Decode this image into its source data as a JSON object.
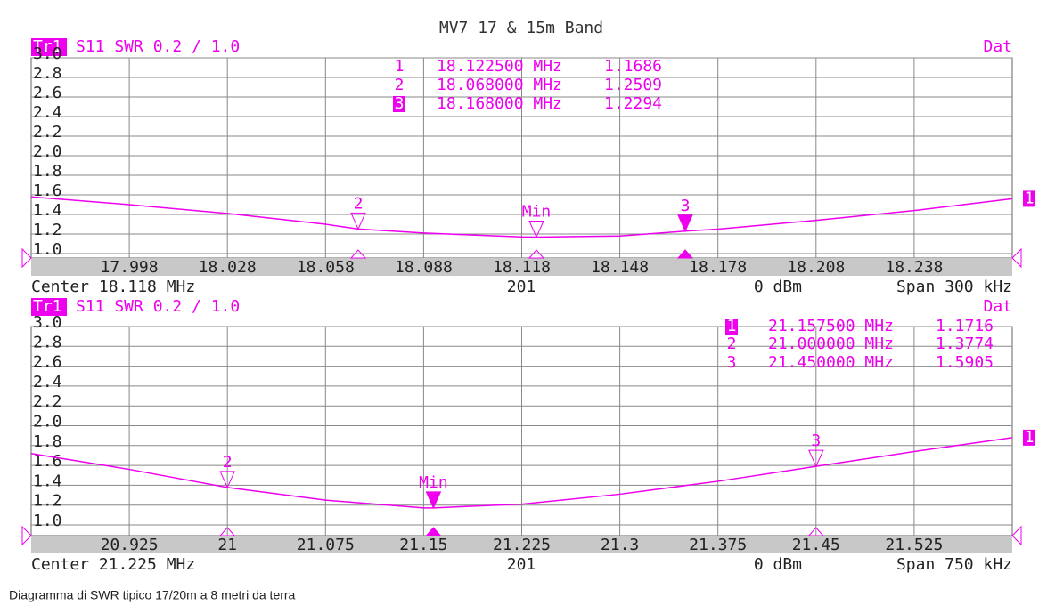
{
  "title": "MV7 17 & 15m Band",
  "caption": "Diagramma di SWR tipico 17/20m a 8 metri da terra",
  "chart_data": [
    {
      "type": "line",
      "trace": "Tr1",
      "format": "S11 SWR 0.2 / 1.0",
      "status": "Dat",
      "trace_number": "1",
      "color": "#ee00ee",
      "grid": true,
      "x": [
        17.968,
        17.998,
        18.028,
        18.058,
        18.068,
        18.088,
        18.118,
        18.1225,
        18.148,
        18.168,
        18.178,
        18.208,
        18.238,
        18.268
      ],
      "values": [
        1.58,
        1.5,
        1.41,
        1.3,
        1.2509,
        1.21,
        1.17,
        1.1686,
        1.18,
        1.2294,
        1.25,
        1.34,
        1.44,
        1.56
      ],
      "xlim": [
        17.968,
        18.268
      ],
      "xticks": [
        17.998,
        18.028,
        18.058,
        18.088,
        18.118,
        18.148,
        18.178,
        18.208,
        18.238
      ],
      "ylim": [
        1.0,
        3.0
      ],
      "yticks": [
        {
          "value": 1.0,
          "label": "1.0"
        },
        1.2,
        1.4,
        1.6,
        1.8,
        {
          "value": 2.0,
          "label": "2.0"
        },
        2.2,
        2.4,
        2.6,
        2.8,
        {
          "value": 3.0,
          "label": "3.0"
        }
      ],
      "markers": [
        {
          "number": "1",
          "tag": "Min",
          "x": 18.1225,
          "x_label": "18.122500 MHz",
          "value": 1.1686,
          "active": false
        },
        {
          "number": "2",
          "x": 18.068,
          "x_label": "18.068000 MHz",
          "value": 1.2509,
          "active": false
        },
        {
          "number": "3",
          "x": 18.168,
          "x_label": "18.168000 MHz",
          "value": 1.2294,
          "active": true
        }
      ],
      "footer": [
        "Center 18.118 MHz",
        "201",
        "0 dBm",
        "Span 300 kHz"
      ]
    },
    {
      "type": "line",
      "trace": "Tr1",
      "format": "S11 SWR 0.2 / 1.0",
      "status": "Dat",
      "trace_number": "1",
      "color": "#ee00ee",
      "grid": true,
      "x": [
        20.85,
        20.925,
        21.0,
        21.075,
        21.15,
        21.1575,
        21.225,
        21.3,
        21.375,
        21.45,
        21.525,
        21.6
      ],
      "values": [
        1.72,
        1.56,
        1.3774,
        1.25,
        1.172,
        1.1716,
        1.21,
        1.31,
        1.44,
        1.5905,
        1.74,
        1.88
      ],
      "xlim": [
        20.85,
        21.6
      ],
      "xticks": [
        20.925,
        21,
        21.075,
        21.15,
        21.225,
        21.3,
        21.375,
        21.45,
        21.525
      ],
      "ylim": [
        1.0,
        3.0
      ],
      "yticks": [
        {
          "value": 1.0,
          "label": "1.0"
        },
        1.2,
        1.4,
        1.6,
        1.8,
        {
          "value": 2.0,
          "label": "2.0"
        },
        2.2,
        2.4,
        2.6,
        2.8,
        {
          "value": 3.0,
          "label": "3.0"
        }
      ],
      "markers": [
        {
          "number": "1",
          "tag": "Min",
          "x": 21.1575,
          "x_label": "21.157500 MHz",
          "value": 1.1716,
          "active": true
        },
        {
          "number": "2",
          "x": 21.0,
          "x_label": "21.000000 MHz",
          "value": 1.3774,
          "active": false
        },
        {
          "number": "3",
          "x": 21.45,
          "x_label": "21.450000 MHz",
          "value": 1.5905,
          "active": false
        }
      ],
      "footer": [
        "Center 21.225 MHz",
        "201",
        "0 dBm",
        "Span 750 kHz"
      ]
    }
  ]
}
